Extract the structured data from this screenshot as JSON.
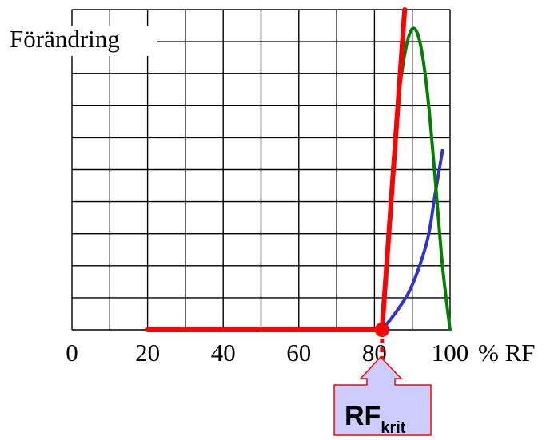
{
  "chart_data": {
    "type": "line",
    "ylabel": "Förändring",
    "xlabel": "% RF",
    "x_ticks": [
      "0",
      "20",
      "40",
      "60",
      "80",
      "100"
    ],
    "xlim": [
      0,
      100
    ],
    "ylim": [
      0,
      10
    ],
    "grid": true,
    "threshold": {
      "label_main": "RF",
      "label_sub": "krit",
      "x": 82
    },
    "series": [
      {
        "color": "#ff0000",
        "style": "horizontal-then-steep",
        "points": [
          [
            20,
            0
          ],
          [
            82,
            0
          ],
          [
            88,
            10
          ]
        ]
      },
      {
        "color": "#008000",
        "style": "bell",
        "points": [
          [
            82,
            0
          ],
          [
            84,
            3.5
          ],
          [
            86,
            6.8
          ],
          [
            88,
            8.6
          ],
          [
            90,
            9.4
          ],
          [
            92,
            9.0
          ],
          [
            94,
            7.4
          ],
          [
            96,
            4.8
          ],
          [
            98,
            2.0
          ],
          [
            100,
            0
          ]
        ]
      },
      {
        "color": "#3333cc",
        "style": "exponential",
        "points": [
          [
            82,
            0
          ],
          [
            86,
            0.6
          ],
          [
            90,
            1.4
          ],
          [
            94,
            2.8
          ],
          [
            96,
            4.2
          ],
          [
            98,
            5.6
          ]
        ]
      }
    ]
  }
}
